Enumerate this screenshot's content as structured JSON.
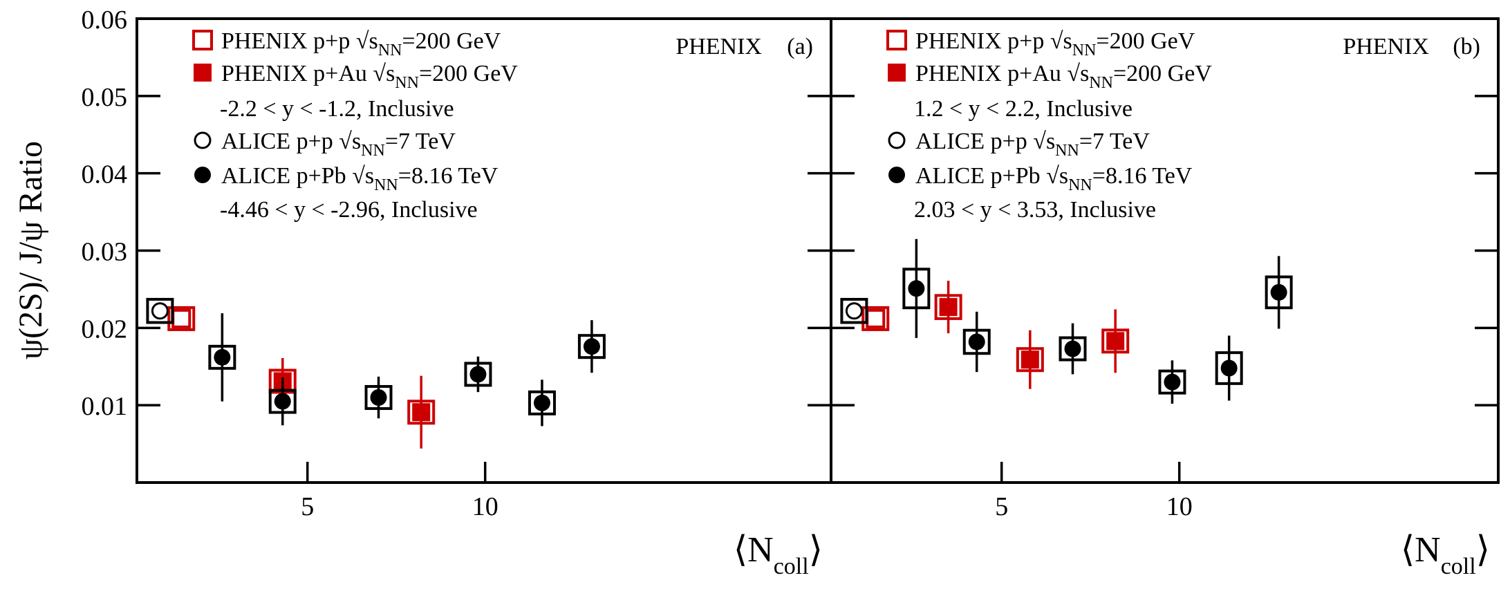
{
  "colors": {
    "phenix": "#cc0000",
    "alice": "#000000",
    "frame": "#000000"
  },
  "chart_data": [
    {
      "type": "scatter",
      "panel_label": "(a)",
      "experiment_tag": "PHENIX",
      "xlabel_main": "⟨N",
      "xlabel_sub": "coll",
      "xlabel_end": "⟩",
      "ylabel": "ψ(2S)/ J/ψ Ratio",
      "xlim": [
        0.2,
        14.2
      ],
      "ylim": [
        0.0,
        0.06
      ],
      "xticks": [
        5,
        10
      ],
      "xtick_labels": [
        "5",
        "10"
      ],
      "yticks": [
        0.01,
        0.02,
        0.03,
        0.04,
        0.05,
        0.06
      ],
      "ytick_labels": [
        "0.01",
        "0.02",
        "0.03",
        "0.04",
        "0.05",
        "0.06"
      ],
      "legend": [
        {
          "marker": "open-square",
          "color": "#cc0000",
          "pre": "PHENIX p+p ",
          "sub": "NN",
          "post": "=200 GeV"
        },
        {
          "marker": "filled-square",
          "color": "#cc0000",
          "pre": "PHENIX p+Au ",
          "sub": "NN",
          "post": "=200 GeV"
        },
        {
          "marker": "none",
          "color": "#000000",
          "text": "-2.2 < y < -1.2, Inclusive"
        },
        {
          "marker": "open-circle",
          "color": "#000000",
          "pre": "ALICE p+p ",
          "sub": "NN",
          "post": "=7 TeV"
        },
        {
          "marker": "filled-circle",
          "color": "#000000",
          "pre": "ALICE p+Pb ",
          "sub": "NN",
          "post": "=8.16 TeV"
        },
        {
          "marker": "none",
          "color": "#000000",
          "text": "-4.46 < y < -2.96, Inclusive"
        }
      ],
      "series": [
        {
          "name": "PHENIX p+p √sNN=200 GeV",
          "marker": "open-square",
          "color": "#cc0000",
          "points": [
            {
              "x": 1.45,
              "y": 0.0212,
              "stat": 0.0,
              "sys": 0.0012
            }
          ]
        },
        {
          "name": "PHENIX p+Au √sNN=200 GeV",
          "marker": "filled-square",
          "color": "#cc0000",
          "points": [
            {
              "x": 4.3,
              "y": 0.0131,
              "stat": 0.003,
              "sys": 0.0011
            },
            {
              "x": 8.2,
              "y": 0.0091,
              "stat": 0.0047,
              "sys": 0.0007
            }
          ]
        },
        {
          "name": "ALICE p+p √sNN=7 TeV",
          "marker": "open-circle",
          "color": "#000000",
          "points": [
            {
              "x": 0.85,
              "y": 0.0222,
              "stat": 0.0,
              "sys": 0.0015
            }
          ]
        },
        {
          "name": "ALICE p+Pb √sNN=8.16 TeV",
          "marker": "filled-circle",
          "color": "#000000",
          "points": [
            {
              "x": 2.6,
              "y": 0.0162,
              "stat": 0.0057,
              "sys": 0.0014
            },
            {
              "x": 4.3,
              "y": 0.0105,
              "stat": 0.0031,
              "sys": 0.001
            },
            {
              "x": 7.0,
              "y": 0.011,
              "stat": 0.0027,
              "sys": 0.0009
            },
            {
              "x": 9.8,
              "y": 0.014,
              "stat": 0.0023,
              "sys": 0.0012
            },
            {
              "x": 11.6,
              "y": 0.0103,
              "stat": 0.003,
              "sys": 0.0008
            },
            {
              "x": 13.0,
              "y": 0.0176,
              "stat": 0.0034,
              "sys": 0.0012
            }
          ]
        }
      ]
    },
    {
      "type": "scatter",
      "panel_label": "(b)",
      "experiment_tag": "PHENIX",
      "xlabel_main": "⟨N",
      "xlabel_sub": "coll",
      "xlabel_end": "⟩",
      "ylabel": "",
      "xlim": [
        0.2,
        14.2
      ],
      "ylim": [
        0.0,
        0.06
      ],
      "xticks": [
        5,
        10
      ],
      "xtick_labels": [
        "5",
        "10"
      ],
      "yticks": [
        0.01,
        0.02,
        0.03,
        0.04,
        0.05,
        0.06
      ],
      "ytick_labels": [],
      "legend": [
        {
          "marker": "open-square",
          "color": "#cc0000",
          "pre": "PHENIX p+p ",
          "sub": "NN",
          "post": "=200 GeV"
        },
        {
          "marker": "filled-square",
          "color": "#cc0000",
          "pre": "PHENIX p+Au ",
          "sub": "NN",
          "post": "=200 GeV"
        },
        {
          "marker": "none",
          "color": "#000000",
          "text": "1.2 < y < 2.2, Inclusive"
        },
        {
          "marker": "open-circle",
          "color": "#000000",
          "pre": "ALICE p+p ",
          "sub": "NN",
          "post": "=7 TeV"
        },
        {
          "marker": "filled-circle",
          "color": "#000000",
          "pre": "ALICE p+Pb ",
          "sub": "NN",
          "post": "=8.16 TeV"
        },
        {
          "marker": "none",
          "color": "#000000",
          "text": "2.03 < y < 3.53, Inclusive"
        }
      ],
      "series": [
        {
          "name": "PHENIX p+p √sNN=200 GeV",
          "marker": "open-square",
          "color": "#cc0000",
          "points": [
            {
              "x": 1.45,
              "y": 0.0212,
              "stat": 0.0,
              "sys": 0.0012
            }
          ]
        },
        {
          "name": "PHENIX p+Au √sNN=200 GeV",
          "marker": "filled-square",
          "color": "#cc0000",
          "points": [
            {
              "x": 3.5,
              "y": 0.0227,
              "stat": 0.0034,
              "sys": 0.0015
            },
            {
              "x": 5.8,
              "y": 0.0159,
              "stat": 0.0038,
              "sys": 0.0011
            },
            {
              "x": 8.2,
              "y": 0.0183,
              "stat": 0.0041,
              "sys": 0.0012
            }
          ]
        },
        {
          "name": "ALICE p+p √sNN=7 TeV",
          "marker": "open-circle",
          "color": "#000000",
          "points": [
            {
              "x": 0.85,
              "y": 0.0222,
              "stat": 0.0,
              "sys": 0.0015
            }
          ]
        },
        {
          "name": "ALICE p+Pb √sNN=8.16 TeV",
          "marker": "filled-circle",
          "color": "#000000",
          "points": [
            {
              "x": 2.6,
              "y": 0.0251,
              "stat": 0.0064,
              "sys": 0.0025
            },
            {
              "x": 4.3,
              "y": 0.0182,
              "stat": 0.0039,
              "sys": 0.0015
            },
            {
              "x": 7.0,
              "y": 0.0173,
              "stat": 0.0033,
              "sys": 0.0012
            },
            {
              "x": 9.8,
              "y": 0.013,
              "stat": 0.0028,
              "sys": 0.0013
            },
            {
              "x": 11.4,
              "y": 0.0148,
              "stat": 0.0042,
              "sys": 0.002
            },
            {
              "x": 12.8,
              "y": 0.0246,
              "stat": 0.0047,
              "sys": 0.002
            }
          ]
        }
      ]
    }
  ]
}
